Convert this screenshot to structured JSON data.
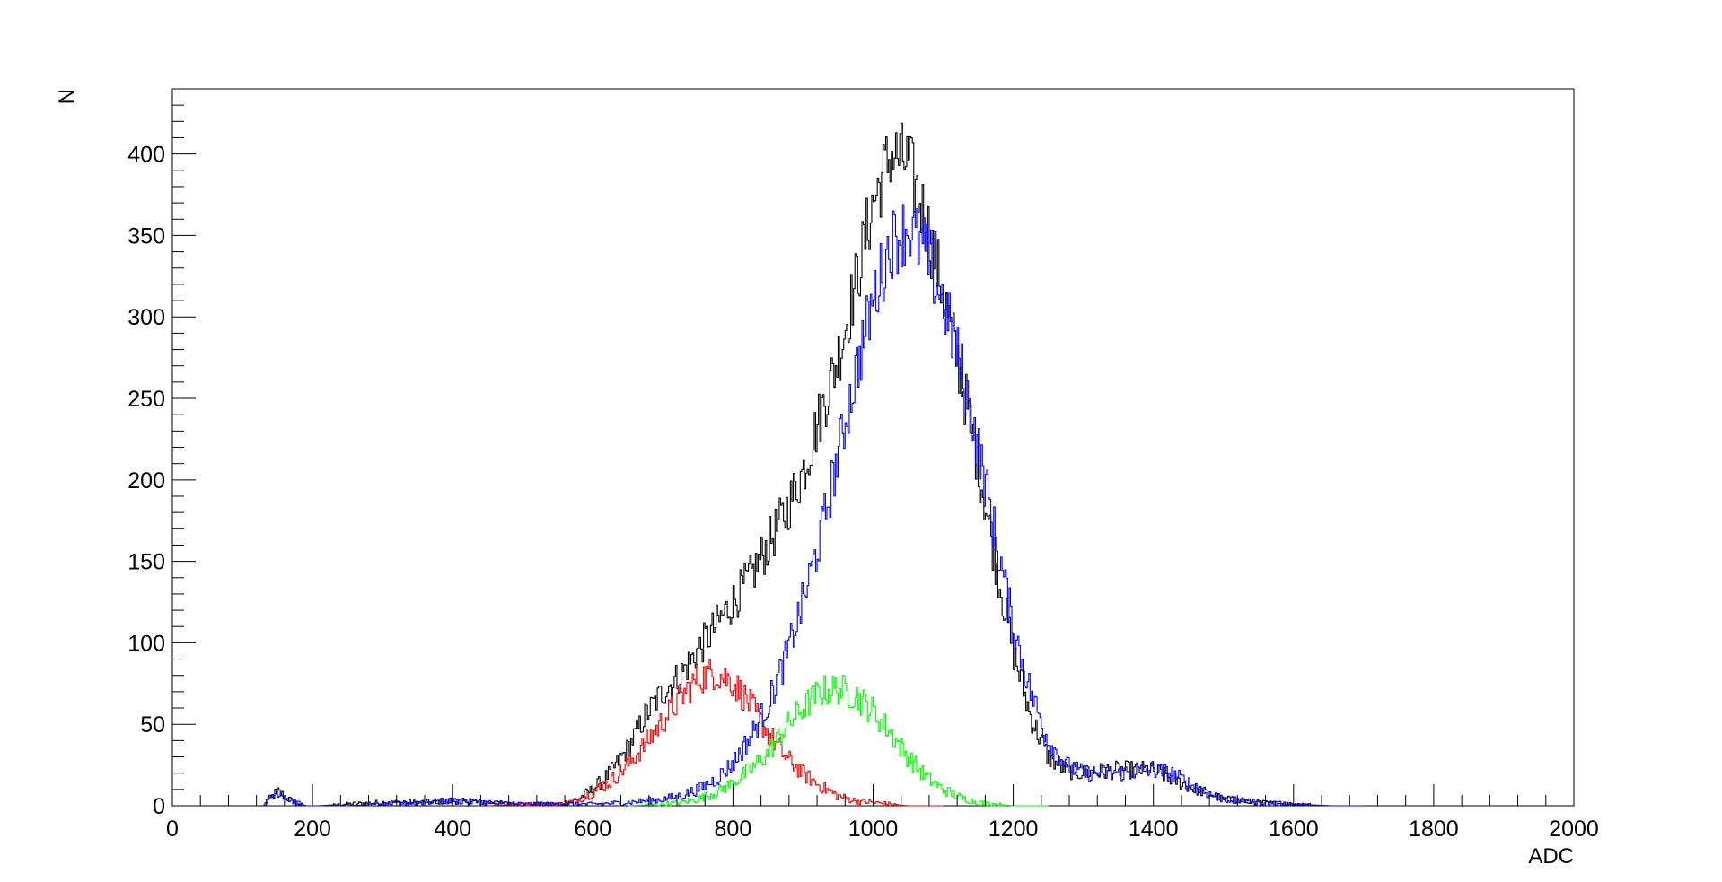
{
  "chart_data": {
    "type": "line",
    "title": "",
    "xlabel": "ADC",
    "ylabel": "N",
    "xlim": [
      0,
      2000
    ],
    "ylim": [
      0,
      440
    ],
    "grid": false,
    "legend": "none",
    "x_ticks": [
      0,
      200,
      400,
      600,
      800,
      1000,
      1200,
      1400,
      1600,
      1800,
      2000
    ],
    "y_ticks": [
      0,
      50,
      100,
      150,
      200,
      250,
      300,
      350,
      400
    ],
    "line_style": "step histogram",
    "series": [
      {
        "color": "#000000",
        "x": [
          130,
          150,
          170,
          190,
          210,
          250,
          300,
          350,
          400,
          450,
          500,
          550,
          575,
          600,
          625,
          650,
          675,
          700,
          725,
          750,
          775,
          800,
          825,
          850,
          875,
          900,
          925,
          950,
          975,
          1000,
          1025,
          1050,
          1075,
          1100,
          1125,
          1150,
          1175,
          1200,
          1225,
          1250,
          1275,
          1300,
          1350,
          1400,
          1450,
          1500,
          1550,
          1600,
          1650,
          1700
        ],
        "values": [
          0,
          9,
          3,
          0,
          0,
          1,
          2,
          2,
          3,
          2,
          1,
          1,
          3,
          10,
          20,
          35,
          55,
          70,
          80,
          95,
          110,
          125,
          140,
          160,
          180,
          205,
          240,
          275,
          320,
          370,
          400,
          395,
          360,
          315,
          265,
          210,
          150,
          95,
          55,
          30,
          22,
          20,
          22,
          22,
          12,
          4,
          2,
          1,
          0,
          0
        ]
      },
      {
        "color": "#ff0000",
        "x": [
          450,
          500,
          550,
          575,
          600,
          625,
          650,
          675,
          700,
          725,
          750,
          775,
          800,
          825,
          850,
          875,
          900,
          925,
          950,
          975,
          1000,
          1025,
          1050,
          1100
        ],
        "values": [
          0,
          1,
          1,
          3,
          8,
          15,
          25,
          38,
          52,
          66,
          78,
          82,
          76,
          62,
          45,
          30,
          20,
          12,
          6,
          3,
          2,
          1,
          0,
          0
        ]
      },
      {
        "color": "#00ff00",
        "x": [
          650,
          700,
          725,
          750,
          775,
          800,
          825,
          850,
          875,
          900,
          925,
          950,
          975,
          1000,
          1025,
          1050,
          1075,
          1100,
          1125,
          1150,
          1175,
          1200,
          1250
        ],
        "values": [
          0,
          1,
          2,
          4,
          8,
          14,
          22,
          32,
          48,
          60,
          70,
          72,
          68,
          58,
          45,
          30,
          18,
          10,
          5,
          2,
          1,
          0,
          0
        ]
      },
      {
        "color": "#0000ff",
        "x": [
          130,
          150,
          170,
          190,
          210,
          250,
          300,
          350,
          400,
          450,
          500,
          550,
          600,
          650,
          700,
          725,
          750,
          775,
          800,
          825,
          850,
          875,
          900,
          925,
          950,
          975,
          1000,
          1025,
          1050,
          1075,
          1100,
          1125,
          1150,
          1175,
          1200,
          1225,
          1250,
          1275,
          1300,
          1350,
          1400,
          1425,
          1450,
          1475,
          1500,
          1550,
          1600,
          1650,
          1700
        ],
        "values": [
          0,
          9,
          3,
          0,
          0,
          0,
          1,
          2,
          3,
          2,
          1,
          1,
          1,
          2,
          4,
          6,
          10,
          16,
          26,
          42,
          62,
          90,
          125,
          165,
          215,
          265,
          310,
          345,
          355,
          340,
          310,
          270,
          220,
          165,
          110,
          70,
          40,
          25,
          20,
          20,
          22,
          20,
          14,
          8,
          4,
          2,
          1,
          0,
          0
        ]
      }
    ]
  }
}
